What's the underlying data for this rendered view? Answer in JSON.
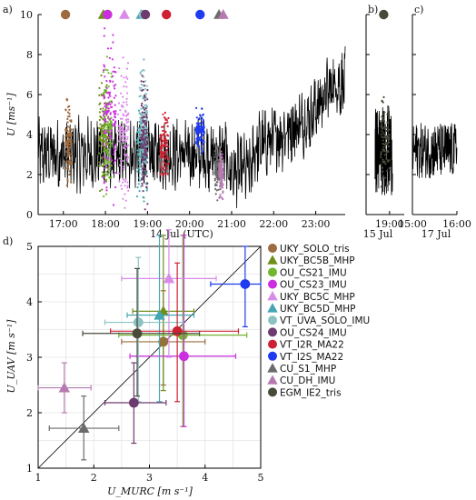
{
  "chart_data": [
    {
      "panel": "a)",
      "type": "line",
      "ylabel": "U [ms⁻¹]",
      "xlabel": "14 Jul (UTC)",
      "x_unit": "hour UTC, 14 Jul",
      "xlim": [
        16.4,
        23.7
      ],
      "ylim": [
        0,
        10
      ],
      "xticks": [
        "17:00",
        "18:00",
        "19:00",
        "20:00",
        "21:00",
        "22:00",
        "23:00"
      ],
      "yticks": [
        "0",
        "2",
        "4",
        "6",
        "8",
        "10"
      ],
      "grid": false,
      "reference_series": {
        "color": "#000000",
        "description": "continuous wind speed time series"
      },
      "legend_markers_at_top": [
        {
          "name": "UKY_SOLO_tris",
          "x": 17.05
        },
        {
          "name": "UKY_BC5B_MHP",
          "x": 17.95
        },
        {
          "name": "OU_CS21_IMU",
          "x": 18.05
        },
        {
          "name": "OU_CS23_IMU",
          "x": 18.05
        },
        {
          "name": "UKY_BC5C_MHP",
          "x": 18.45
        },
        {
          "name": "UKY_BC5D_MHP",
          "x": 18.85
        },
        {
          "name": "VT_UVA_SOLO_IMU",
          "x": 18.9
        },
        {
          "name": "OU_CS24_IMU",
          "x": 18.95
        },
        {
          "name": "VT_I2R_MA22",
          "x": 19.45
        },
        {
          "name": "VT_I2S_MA22",
          "x": 20.25
        },
        {
          "name": "CU_S1_MHP",
          "x": 20.7
        },
        {
          "name": "CU_DH_IMU",
          "x": 20.8
        }
      ],
      "instrument_samples": [
        {
          "name": "UKY_SOLO_tris",
          "x_start": 17.05,
          "x_end": 17.2,
          "y_low": 1.5,
          "y_high": 5.8
        },
        {
          "name": "UKY_BC5B_MHP",
          "x_start": 17.85,
          "x_end": 18.05,
          "y_low": 1.2,
          "y_high": 6.8
        },
        {
          "name": "OU_CS21_IMU",
          "x_start": 17.95,
          "x_end": 18.15,
          "y_low": 0.6,
          "y_high": 8.0
        },
        {
          "name": "OU_CS23_IMU",
          "x_start": 17.95,
          "x_end": 18.25,
          "y_low": 0.5,
          "y_high": 9.5
        },
        {
          "name": "UKY_BC5C_MHP",
          "x_start": 18.3,
          "x_end": 18.55,
          "y_low": 0.4,
          "y_high": 8.0
        },
        {
          "name": "UKY_BC5D_MHP",
          "x_start": 18.75,
          "x_end": 19.0,
          "y_low": 0.5,
          "y_high": 6.5
        },
        {
          "name": "VT_UVA_SOLO_IMU",
          "x_start": 18.8,
          "x_end": 19.0,
          "y_low": 0.8,
          "y_high": 7.8
        },
        {
          "name": "OU_CS24_IMU",
          "x_start": 18.85,
          "x_end": 19.0,
          "y_low": 0.4,
          "y_high": 7.0
        },
        {
          "name": "VT_I2R_MA22",
          "x_start": 19.3,
          "x_end": 19.5,
          "y_low": 1.5,
          "y_high": 5.3
        },
        {
          "name": "VT_I2S_MA22",
          "x_start": 20.15,
          "x_end": 20.35,
          "y_low": 3.0,
          "y_high": 5.5
        },
        {
          "name": "CU_S1_MHP",
          "x_start": 20.6,
          "x_end": 20.75,
          "y_low": 0.8,
          "y_high": 3.5
        },
        {
          "name": "CU_DH_IMU",
          "x_start": 20.7,
          "x_end": 20.8,
          "y_low": 0.8,
          "y_high": 3.2
        }
      ]
    },
    {
      "panel": "b)",
      "type": "line",
      "xlabel": "15 Jul",
      "x_unit": "hour UTC, 15 Jul",
      "xlim": [
        18.6,
        19.25
      ],
      "ylim": [
        0,
        10
      ],
      "xticks": [
        "19:00"
      ],
      "legend_markers_at_top": [
        {
          "name": "EGM_IE2_tris",
          "x": 18.9
        }
      ],
      "instrument_samples": [
        {
          "name": "EGM_IE2_tris",
          "x_start": 18.85,
          "x_end": 19.0,
          "y_low": 1.2,
          "y_high": 6.5
        }
      ]
    },
    {
      "panel": "c)",
      "type": "line",
      "xlabel": "17 Jul",
      "x_unit": "hour UTC, 17 Jul",
      "xlim": [
        15.0,
        16.0
      ],
      "ylim": [
        0,
        10
      ],
      "xticks": [
        "15:00",
        "16:00"
      ]
    },
    {
      "panel": "d)",
      "type": "scatter",
      "xlabel": "U_MURC [m s⁻¹]",
      "ylabel": "U_UAV [m s⁻¹]",
      "xlim": [
        1,
        5
      ],
      "ylim": [
        1,
        5
      ],
      "xticks": [
        "1",
        "2",
        "3",
        "4",
        "5"
      ],
      "yticks": [
        "1",
        "2",
        "3",
        "4",
        "5"
      ],
      "grid": true,
      "one_to_one_line": true,
      "legend_position": "right",
      "series": [
        {
          "name": "UKY_SOLO_tris",
          "marker": "circle",
          "color": "#9c6b3f",
          "x": 3.25,
          "y": 3.28,
          "xerr": [
            2.5,
            4.0
          ],
          "yerr": [
            2.5,
            4.2
          ]
        },
        {
          "name": "UKY_BC5B_MHP",
          "marker": "triangle",
          "color": "#6f8e1a",
          "x": 3.25,
          "y": 3.83,
          "xerr": [
            2.7,
            3.8
          ],
          "yerr": [
            2.4,
            5.2
          ]
        },
        {
          "name": "OU_CS21_IMU",
          "marker": "circle",
          "color": "#72b52e",
          "x": 3.6,
          "y": 3.4,
          "xerr": [
            2.45,
            4.75
          ],
          "yerr": [
            1.75,
            5.2
          ]
        },
        {
          "name": "OU_CS23_IMU",
          "marker": "circle",
          "color": "#cc2fe0",
          "x": 3.62,
          "y": 3.02,
          "xerr": [
            2.65,
            4.55
          ],
          "yerr": [
            1.75,
            5.2
          ]
        },
        {
          "name": "UKY_BC5C_MHP",
          "marker": "triangle",
          "color": "#d98be8",
          "x": 3.35,
          "y": 4.42,
          "xerr": [
            2.5,
            4.2
          ],
          "yerr": [
            3.0,
            5.3
          ]
        },
        {
          "name": "UKY_BC5D_MHP",
          "marker": "triangle",
          "color": "#46a6b3",
          "x": 3.18,
          "y": 3.76,
          "xerr": [
            2.6,
            3.8
          ],
          "yerr": [
            2.2,
            5.2
          ]
        },
        {
          "name": "VT_UVA_SOLO_IMU",
          "marker": "circle",
          "color": "#8cc2c2",
          "x": 2.8,
          "y": 3.63,
          "xerr": [
            2.2,
            3.6
          ],
          "yerr": [
            2.2,
            4.8
          ]
        },
        {
          "name": "OU_CS24_IMU",
          "marker": "circle",
          "color": "#6e3b6e",
          "x": 2.72,
          "y": 2.18,
          "xerr": [
            2.2,
            3.3
          ],
          "yerr": [
            1.45,
            2.9
          ]
        },
        {
          "name": "VT_I2R_MA22",
          "marker": "circle",
          "color": "#cc2233",
          "x": 3.5,
          "y": 3.47,
          "xerr": [
            2.3,
            4.6
          ],
          "yerr": [
            2.2,
            4.7
          ]
        },
        {
          "name": "VT_I2S_MA22",
          "marker": "circle",
          "color": "#1f3bf0",
          "x": 4.72,
          "y": 4.32,
          "xerr": [
            4.1,
            5.0
          ],
          "yerr": [
            3.55,
            5.0
          ]
        },
        {
          "name": "CU_S1_MHP",
          "marker": "triangle",
          "color": "#6b6b6b",
          "x": 1.82,
          "y": 1.72,
          "xerr": [
            1.2,
            2.45
          ],
          "yerr": [
            1.15,
            2.3
          ]
        },
        {
          "name": "CU_DH_IMU",
          "marker": "triangle",
          "color": "#b67ab1",
          "x": 1.47,
          "y": 2.45,
          "xerr": [
            1.0,
            1.95
          ],
          "yerr": [
            2.0,
            2.9
          ]
        },
        {
          "name": "EGM_IE2_tris",
          "marker": "circle",
          "color": "#484a3a",
          "x": 2.78,
          "y": 3.43,
          "xerr": [
            1.8,
            3.9
          ],
          "yerr": [
            2.3,
            4.6
          ]
        }
      ]
    }
  ]
}
